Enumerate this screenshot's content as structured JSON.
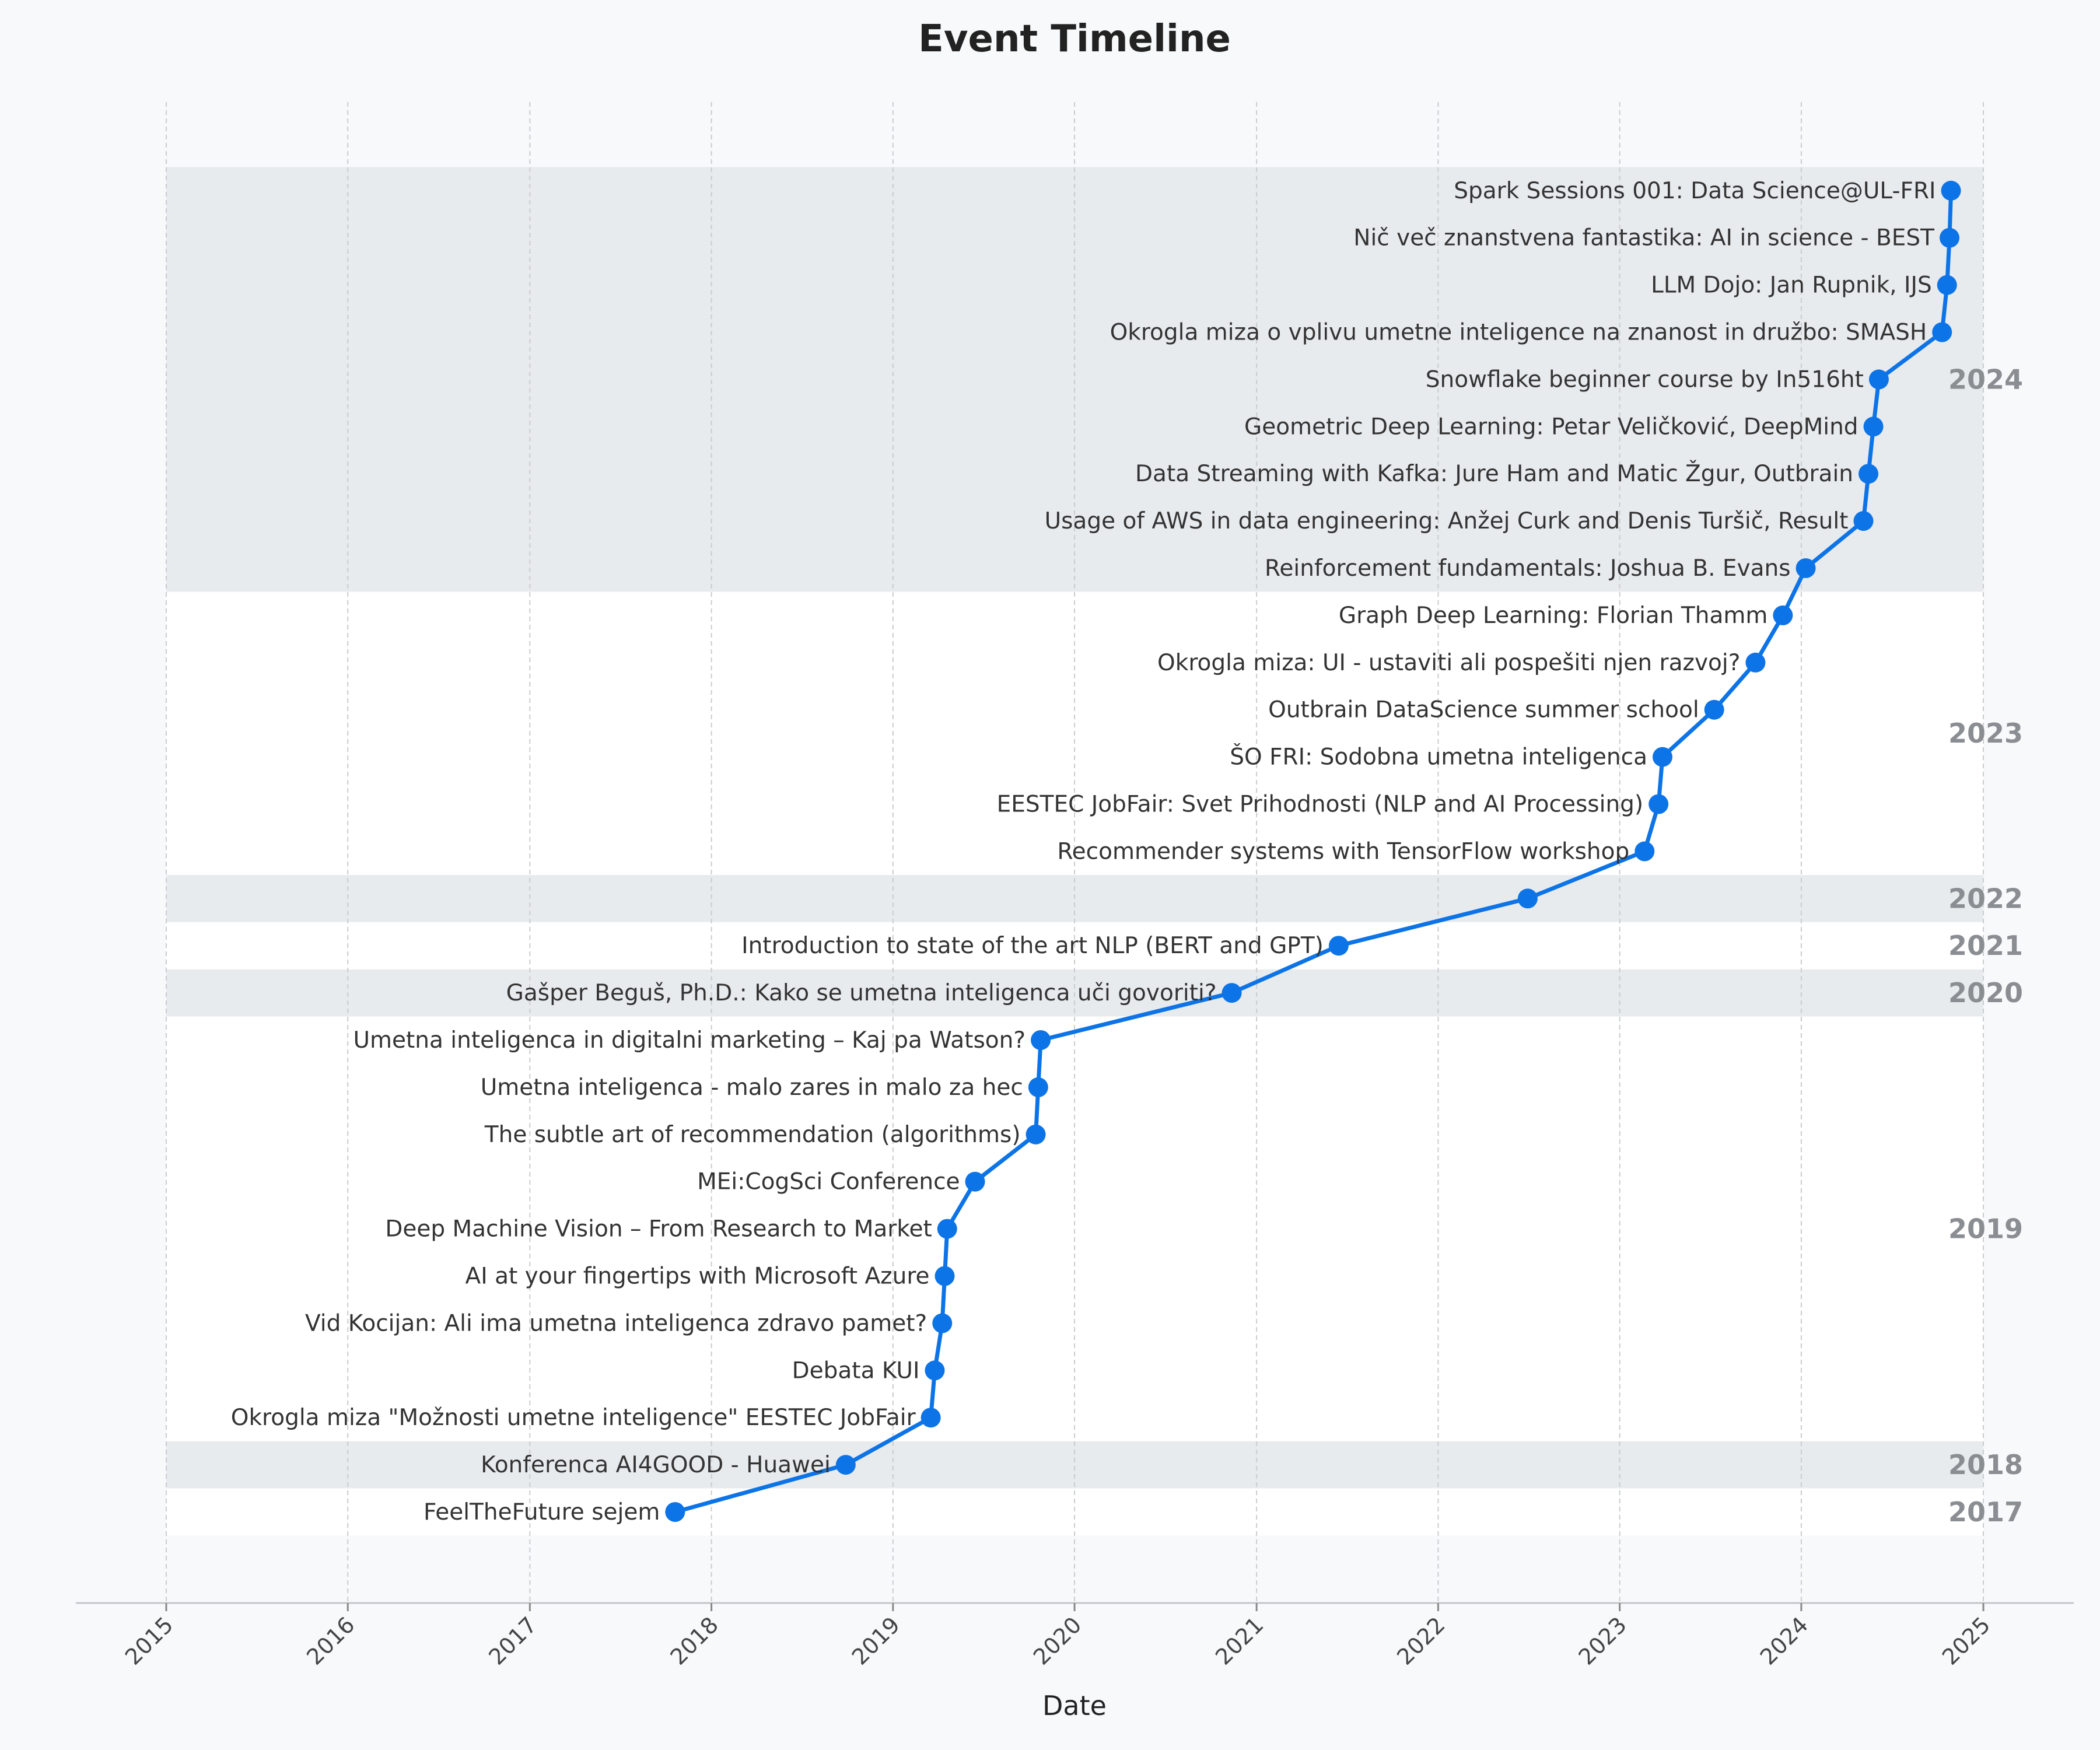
{
  "chart_data": {
    "type": "line",
    "title": "Event Timeline",
    "xlabel": "Date",
    "ylabel": "",
    "xlim": [
      "2015-01-01",
      "2025-01-01"
    ],
    "x_ticks": [
      "2015",
      "2016",
      "2017",
      "2018",
      "2019",
      "2020",
      "2021",
      "2022",
      "2023",
      "2024",
      "2025"
    ],
    "grid": true,
    "accent_color": "#0d74e7",
    "band_color": "#e8ebee",
    "year_groups": [
      {
        "year": "2017",
        "shaded": false
      },
      {
        "year": "2018",
        "shaded": true
      },
      {
        "year": "2019",
        "shaded": false
      },
      {
        "year": "2020",
        "shaded": true
      },
      {
        "year": "2021",
        "shaded": false
      },
      {
        "year": "2022",
        "shaded": true
      },
      {
        "year": "2023",
        "shaded": false
      },
      {
        "year": "2024",
        "shaded": true
      }
    ],
    "events": [
      {
        "date": "2017-10-20",
        "label": "FeelTheFuture sejem"
      },
      {
        "date": "2018-09-28",
        "label": "Konferenca AI4GOOD - Huawei"
      },
      {
        "date": "2019-03-18",
        "label": "Okrogla miza \"Možnosti umetne inteligence\" EESTEC JobFair"
      },
      {
        "date": "2019-03-26",
        "label": "Debata KUI"
      },
      {
        "date": "2019-04-10",
        "label": "Vid Kocijan: Ali ima umetna inteligenca zdravo pamet?"
      },
      {
        "date": "2019-04-15",
        "label": "AI at your fingertips with Microsoft Azure"
      },
      {
        "date": "2019-04-20",
        "label": "Deep Machine Vision – From Research to Market"
      },
      {
        "date": "2019-06-15",
        "label": "MEi:CogSci Conference"
      },
      {
        "date": "2019-10-15",
        "label": "The subtle art of recommendation (algorithms)"
      },
      {
        "date": "2019-10-20",
        "label": "Umetna inteligenca - malo zares in malo za hec"
      },
      {
        "date": "2019-10-25",
        "label": "Umetna inteligenca in digitalni marketing – Kaj pa Watson?"
      },
      {
        "date": "2020-11-12",
        "label": "Gašper Beguš, Ph.D.: Kako se umetna inteligenca uči govoriti?"
      },
      {
        "date": "2021-06-15",
        "label": "Introduction to state of the art NLP (BERT and GPT)"
      },
      {
        "date": "2022-06-30",
        "label": ""
      },
      {
        "date": "2023-02-20",
        "label": "Recommender systems with TensorFlow workshop"
      },
      {
        "date": "2023-03-20",
        "label": "EESTEC JobFair: Svet Prihodnosti (NLP and AI Processing)"
      },
      {
        "date": "2023-03-28",
        "label": "ŠO FRI: Sodobna umetna inteligenca"
      },
      {
        "date": "2023-07-10",
        "label": "Outbrain DataScience summer school"
      },
      {
        "date": "2023-10-01",
        "label": "Okrogla miza: UI - ustaviti ali pospešiti njen razvoj?"
      },
      {
        "date": "2023-11-25",
        "label": "Graph Deep Learning: Florian Thamm"
      },
      {
        "date": "2024-01-10",
        "label": "Reinforcement fundamentals: Joshua B. Evans"
      },
      {
        "date": "2024-05-05",
        "label": "Usage of AWS in data engineering: Anžej Curk and Denis Turšič, Result"
      },
      {
        "date": "2024-05-15",
        "label": "Data Streaming with Kafka: Jure Ham and Matic Žgur, Outbrain"
      },
      {
        "date": "2024-05-25",
        "label": "Geometric Deep Learning: Petar Veličković, DeepMind"
      },
      {
        "date": "2024-06-05",
        "label": "Snowflake beginner course by In516ht"
      },
      {
        "date": "2024-10-10",
        "label": "Okrogla miza o vplivu umetne inteligence na znanost in družbo: SMASH"
      },
      {
        "date": "2024-10-20",
        "label": "LLM Dojo: Jan Rupnik, IJS"
      },
      {
        "date": "2024-10-25",
        "label": "Nič več znanstvena fantastika: AI in science - BEST"
      },
      {
        "date": "2024-10-28",
        "label": "Spark Sessions 001: Data Science@UL-FRI"
      }
    ]
  }
}
